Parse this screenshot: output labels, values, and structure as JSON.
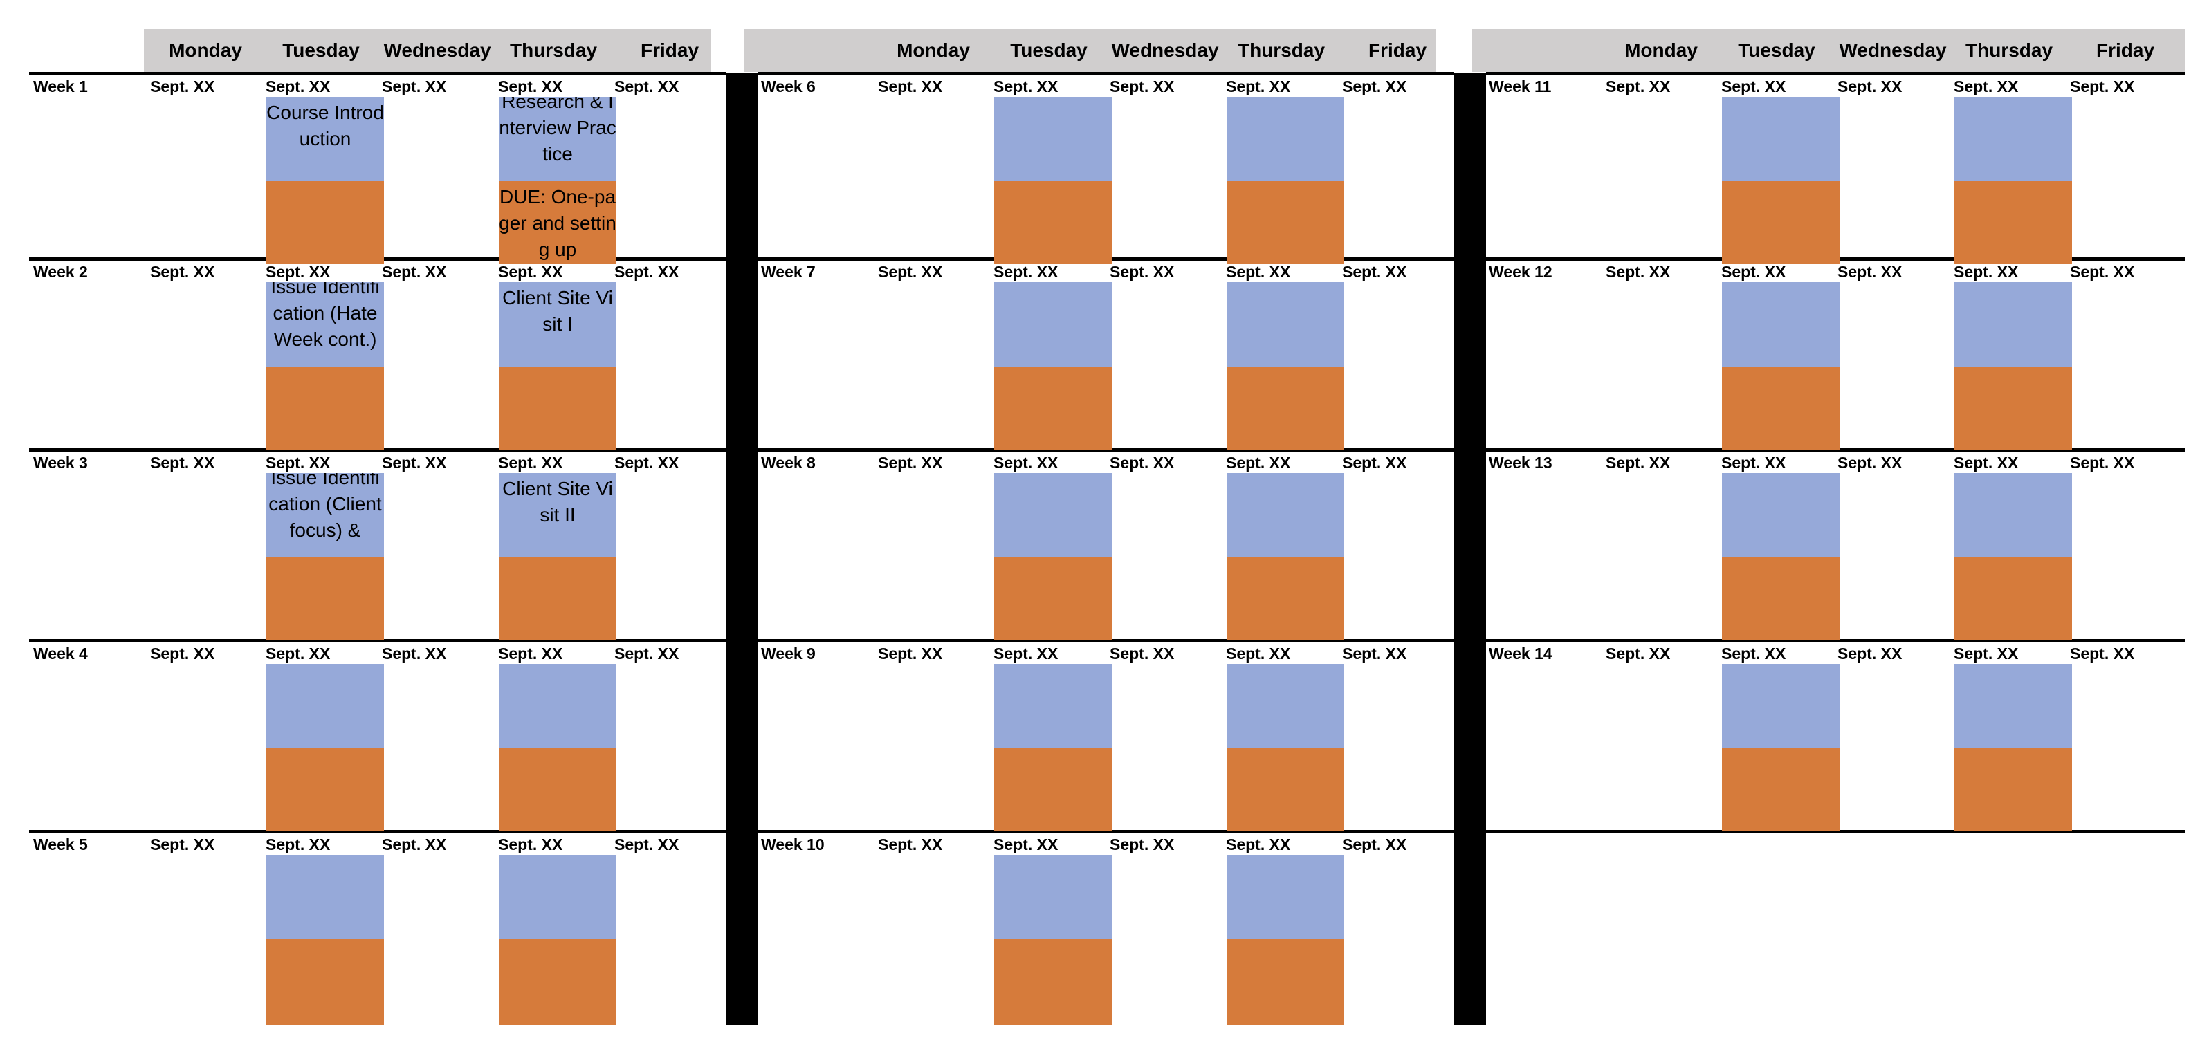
{
  "calendar": {
    "day_names": [
      "Monday",
      "Tuesday",
      "Wednesday",
      "Thursday",
      "Friday"
    ],
    "date_placeholder": "Sept. XX",
    "colors": {
      "header": "#d0cece",
      "session": "#96a9d9",
      "assignment": "#d67b3b",
      "rule": "#000000"
    },
    "weeks": [
      {
        "label": "Week 1",
        "tuesday": {
          "top": "Course Introduction",
          "bottom": ""
        },
        "thursday": {
          "top": "Research & Interview Practice",
          "bottom": "DUE: One-pager and setting up"
        }
      },
      {
        "label": "Week 2",
        "tuesday": {
          "top": "Issue Identification (Hate Week cont.)",
          "bottom": ""
        },
        "thursday": {
          "top": "Client Site Visit I",
          "bottom": ""
        }
      },
      {
        "label": "Week 3",
        "tuesday": {
          "top": "Issue Identification (Client focus) &",
          "bottom": ""
        },
        "thursday": {
          "top": "Client Site Visit II",
          "bottom": ""
        }
      },
      {
        "label": "Week 4",
        "tuesday": {
          "top": "",
          "bottom": ""
        },
        "thursday": {
          "top": "",
          "bottom": ""
        }
      },
      {
        "label": "Week 5",
        "tuesday": {
          "top": "",
          "bottom": ""
        },
        "thursday": {
          "top": "",
          "bottom": ""
        }
      },
      {
        "label": "Week 6",
        "tuesday": {
          "top": "",
          "bottom": ""
        },
        "thursday": {
          "top": "",
          "bottom": ""
        }
      },
      {
        "label": "Week 7",
        "tuesday": {
          "top": "",
          "bottom": ""
        },
        "thursday": {
          "top": "",
          "bottom": ""
        }
      },
      {
        "label": "Week 8",
        "tuesday": {
          "top": "",
          "bottom": ""
        },
        "thursday": {
          "top": "",
          "bottom": ""
        }
      },
      {
        "label": "Week 9",
        "tuesday": {
          "top": "",
          "bottom": ""
        },
        "thursday": {
          "top": "",
          "bottom": ""
        }
      },
      {
        "label": "Week 10",
        "tuesday": {
          "top": "",
          "bottom": ""
        },
        "thursday": {
          "top": "",
          "bottom": ""
        }
      },
      {
        "label": "Week 11",
        "tuesday": {
          "top": "",
          "bottom": ""
        },
        "thursday": {
          "top": "",
          "bottom": ""
        }
      },
      {
        "label": "Week 12",
        "tuesday": {
          "top": "",
          "bottom": ""
        },
        "thursday": {
          "top": "",
          "bottom": ""
        }
      },
      {
        "label": "Week 13",
        "tuesday": {
          "top": "",
          "bottom": ""
        },
        "thursday": {
          "top": "",
          "bottom": ""
        }
      },
      {
        "label": "Week 14",
        "tuesday": {
          "top": "",
          "bottom": ""
        },
        "thursday": {
          "top": "",
          "bottom": ""
        }
      }
    ]
  }
}
